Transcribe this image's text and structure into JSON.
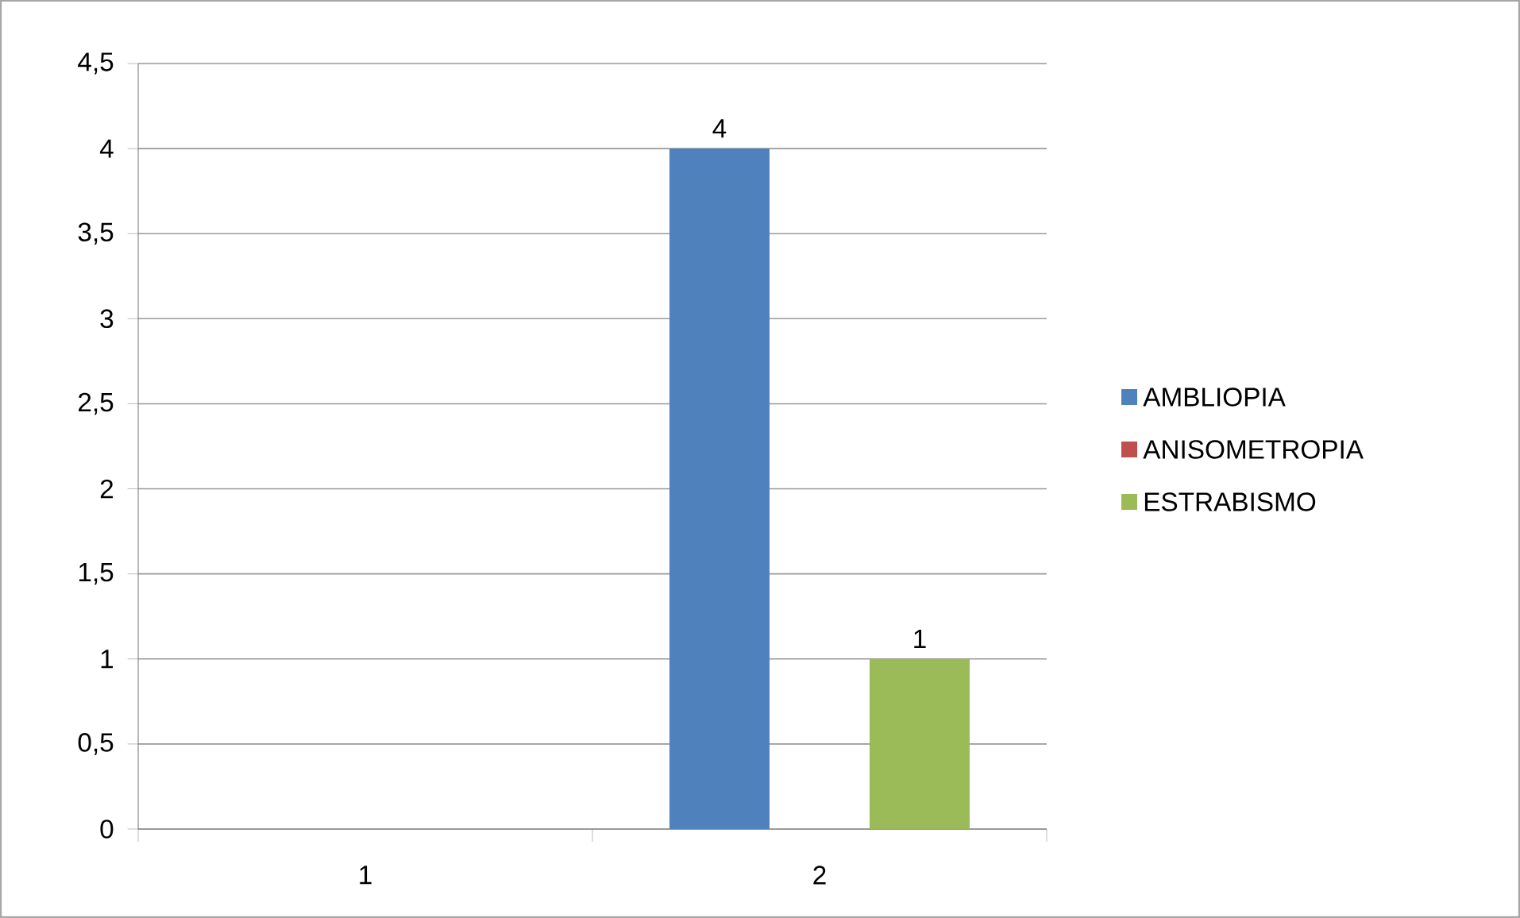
{
  "chart_data": {
    "type": "bar",
    "categories": [
      "1",
      "2"
    ],
    "series": [
      {
        "name": "AMBLIOPIA",
        "color": "#4f81bd",
        "values": [
          null,
          4
        ]
      },
      {
        "name": "ANISOMETROPIA",
        "color": "#c0504d",
        "values": [
          null,
          null
        ]
      },
      {
        "name": "ESTRABISMO",
        "color": "#9bbb59",
        "values": [
          null,
          1
        ]
      }
    ],
    "ylim": [
      0,
      4.5
    ],
    "yticks": [
      0,
      {
        "value": 0.5,
        "label": "0,5"
      },
      1,
      {
        "value": 1.5,
        "label": "1,5"
      },
      2,
      {
        "value": 2.5,
        "label": "2,5"
      },
      3,
      {
        "value": 3.5,
        "label": "3,5"
      },
      4,
      {
        "value": 4.5,
        "label": "4,5"
      }
    ],
    "grid": "y",
    "legend": "right",
    "data_labels": true
  }
}
